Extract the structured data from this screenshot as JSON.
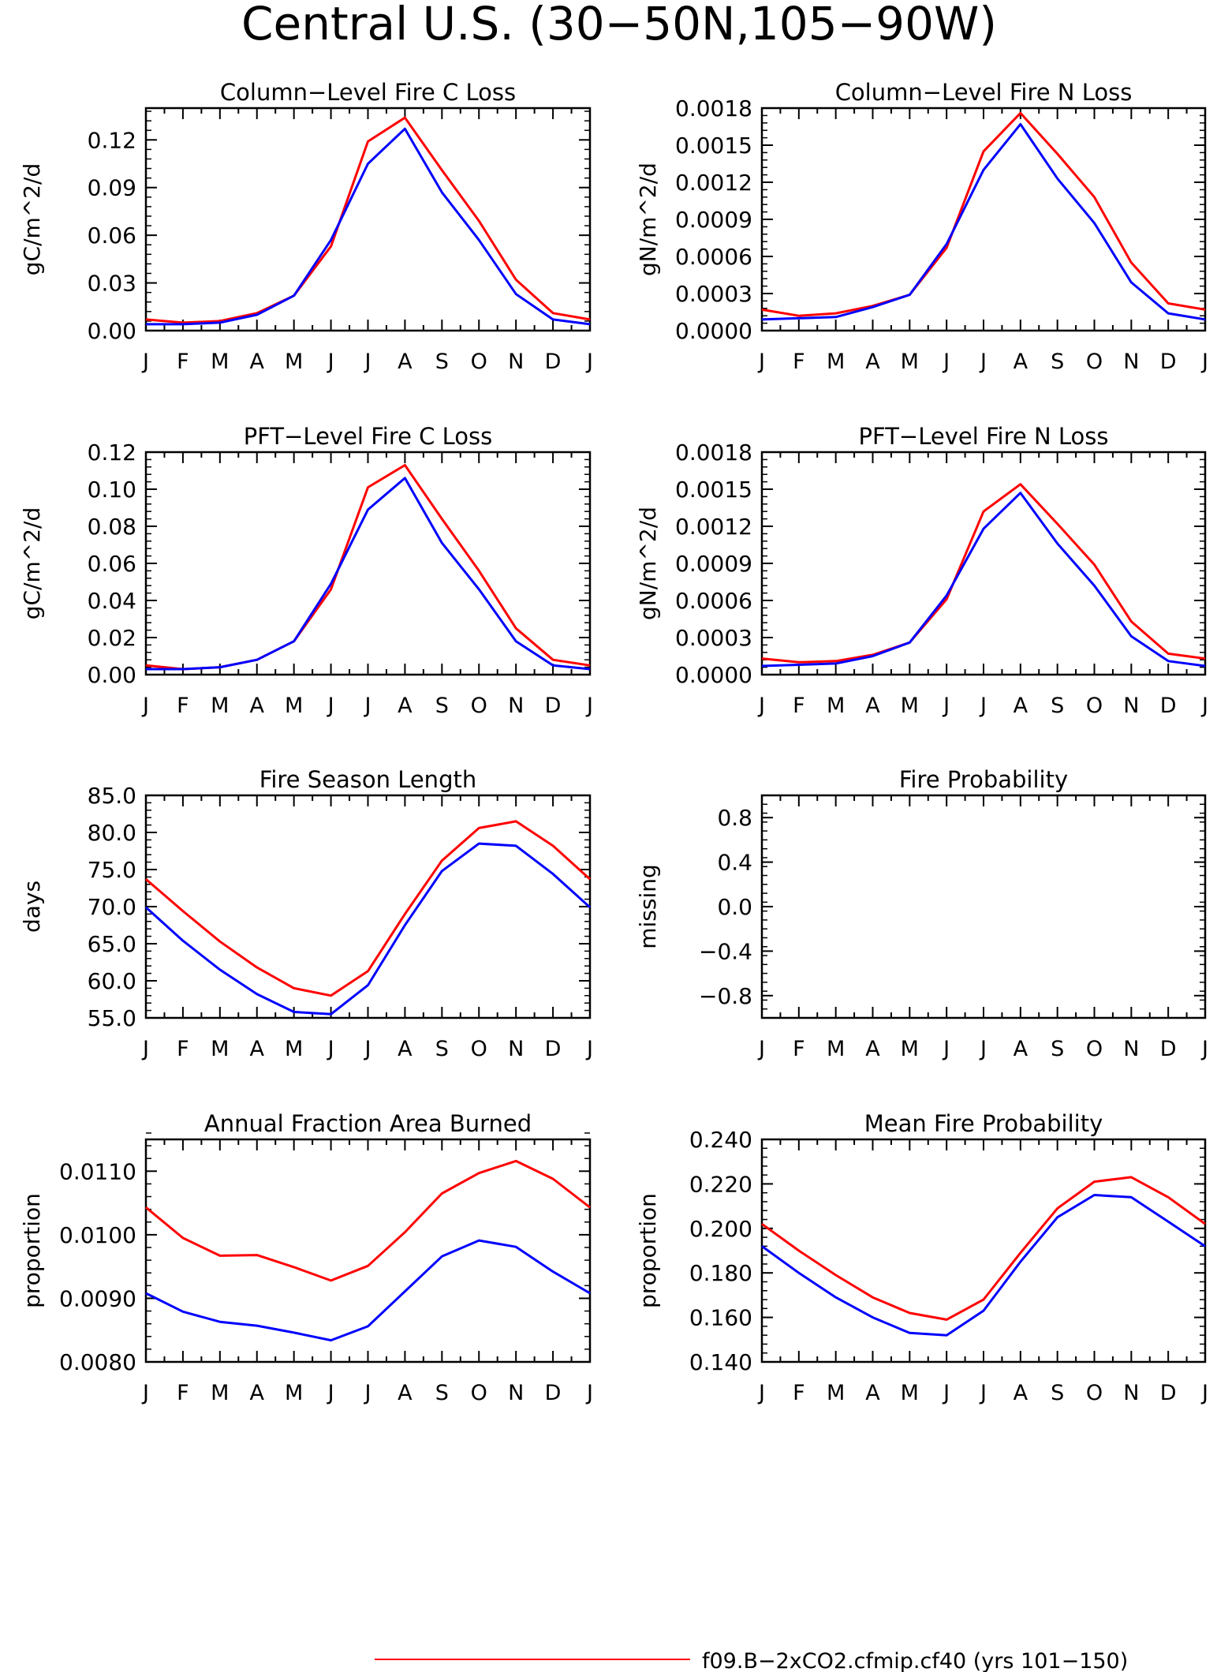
{
  "page": {
    "title": "Central U.S. (30−50N,105−90W)"
  },
  "months": [
    "J",
    "F",
    "M",
    "A",
    "M",
    "J",
    "J",
    "A",
    "S",
    "O",
    "N",
    "D",
    "J"
  ],
  "legend": {
    "entries": [
      {
        "label": "f09.B−2xCO2.cfmip.cf40 (yrs 101−150)",
        "color": "#ff0000"
      }
    ]
  },
  "colors": {
    "red": "#ff0000",
    "blue": "#0000ff"
  },
  "chart_data": [
    {
      "type": "line",
      "title": "Column−Level Fire C Loss",
      "ylabel": "gC/m^2/d",
      "ylim": [
        0,
        0.14
      ],
      "yticks": [
        "0.00",
        "0.03",
        "0.06",
        "0.09",
        "0.12"
      ],
      "ytick_values": [
        0,
        0.03,
        0.06,
        0.09,
        0.12
      ],
      "series": [
        {
          "color": "#ff0000",
          "values": [
            0.007,
            0.005,
            0.006,
            0.011,
            0.022,
            0.053,
            0.119,
            0.134,
            0.101,
            0.069,
            0.032,
            0.011,
            0.007
          ]
        },
        {
          "color": "#0000ff",
          "values": [
            0.004,
            0.004,
            0.005,
            0.01,
            0.022,
            0.057,
            0.105,
            0.127,
            0.087,
            0.057,
            0.023,
            0.007,
            0.004
          ]
        }
      ]
    },
    {
      "type": "line",
      "title": "Column−Level Fire N Loss",
      "ylabel": "gN/m^2/d",
      "ylim": [
        0,
        0.0018
      ],
      "yticks": [
        "0.0000",
        "0.0003",
        "0.0006",
        "0.0009",
        "0.0012",
        "0.0015",
        "0.0018"
      ],
      "ytick_values": [
        0,
        0.0003,
        0.0006,
        0.0009,
        0.0012,
        0.0015,
        0.0018
      ],
      "series": [
        {
          "color": "#ff0000",
          "values": [
            0.00017,
            0.00012,
            0.00014,
            0.0002,
            0.00029,
            0.00067,
            0.00145,
            0.00176,
            0.00143,
            0.00108,
            0.00055,
            0.00022,
            0.00017
          ]
        },
        {
          "color": "#0000ff",
          "values": [
            9e-05,
            0.0001,
            0.00011,
            0.00019,
            0.00029,
            0.0007,
            0.0013,
            0.00167,
            0.00123,
            0.00087,
            0.00039,
            0.00014,
            9e-05
          ]
        }
      ]
    },
    {
      "type": "line",
      "title": "PFT−Level Fire C Loss",
      "ylabel": "gC/m^2/d",
      "ylim": [
        0,
        0.12
      ],
      "yticks": [
        "0.00",
        "0.02",
        "0.04",
        "0.06",
        "0.08",
        "0.10",
        "0.12"
      ],
      "ytick_values": [
        0,
        0.02,
        0.04,
        0.06,
        0.08,
        0.1,
        0.12
      ],
      "series": [
        {
          "color": "#ff0000",
          "values": [
            0.005,
            0.003,
            0.004,
            0.008,
            0.018,
            0.046,
            0.101,
            0.113,
            0.084,
            0.056,
            0.025,
            0.008,
            0.005
          ]
        },
        {
          "color": "#0000ff",
          "values": [
            0.003,
            0.003,
            0.004,
            0.008,
            0.018,
            0.049,
            0.089,
            0.106,
            0.071,
            0.046,
            0.018,
            0.005,
            0.003
          ]
        }
      ]
    },
    {
      "type": "line",
      "title": "PFT−Level Fire N Loss",
      "ylabel": "gN/m^2/d",
      "ylim": [
        0,
        0.0018
      ],
      "yticks": [
        "0.0000",
        "0.0003",
        "0.0006",
        "0.0009",
        "0.0012",
        "0.0015",
        "0.0018"
      ],
      "ytick_values": [
        0,
        0.0003,
        0.0006,
        0.0009,
        0.0012,
        0.0015,
        0.0018
      ],
      "series": [
        {
          "color": "#ff0000",
          "values": [
            0.00013,
            0.0001,
            0.00011,
            0.00016,
            0.00026,
            0.00061,
            0.00132,
            0.00154,
            0.00122,
            0.00089,
            0.00043,
            0.00017,
            0.00013
          ]
        },
        {
          "color": "#0000ff",
          "values": [
            7e-05,
            8e-05,
            9e-05,
            0.00015,
            0.00026,
            0.00064,
            0.00118,
            0.00147,
            0.00106,
            0.00072,
            0.00031,
            0.00011,
            7e-05
          ]
        }
      ]
    },
    {
      "type": "line",
      "title": "Fire Season Length",
      "ylabel": "days",
      "ylim": [
        55,
        85
      ],
      "yticks": [
        "55.0",
        "60.0",
        "65.0",
        "70.0",
        "75.0",
        "80.0",
        "85.0"
      ],
      "ytick_values": [
        55,
        60,
        65,
        70,
        75,
        80,
        85
      ],
      "series": [
        {
          "color": "#ff0000",
          "values": [
            73.7,
            69.4,
            65.3,
            61.8,
            59.0,
            58.0,
            61.3,
            69.0,
            76.2,
            80.6,
            81.5,
            78.2,
            73.7
          ]
        },
        {
          "color": "#0000ff",
          "values": [
            69.9,
            65.4,
            61.5,
            58.2,
            55.8,
            55.5,
            59.4,
            67.5,
            74.8,
            78.5,
            78.2,
            74.4,
            69.9
          ]
        }
      ]
    },
    {
      "type": "line",
      "title": "Fire Probability",
      "ylabel": "missing",
      "ylim": [
        -1,
        1
      ],
      "yticks": [
        "−0.8",
        "−0.4",
        "0.0",
        "0.4",
        "0.8"
      ],
      "ytick_values": [
        -0.8,
        -0.4,
        0,
        0.4,
        0.8
      ],
      "series": []
    },
    {
      "type": "line",
      "title": "Annual Fraction Area Burned",
      "ylabel": "proportion",
      "ylim": [
        0.008,
        0.0115
      ],
      "yticks": [
        "0.0080",
        "0.0090",
        "0.0100",
        "0.0110"
      ],
      "ytick_values": [
        0.008,
        0.009,
        0.01,
        0.011
      ],
      "series": [
        {
          "color": "#ff0000",
          "values": [
            0.01043,
            0.00995,
            0.00967,
            0.00968,
            0.00949,
            0.00928,
            0.00951,
            0.01004,
            0.01065,
            0.01097,
            0.01116,
            0.01088,
            0.01043
          ]
        },
        {
          "color": "#0000ff",
          "values": [
            0.00908,
            0.00879,
            0.00863,
            0.00857,
            0.00846,
            0.00834,
            0.00856,
            0.00911,
            0.00966,
            0.00991,
            0.00981,
            0.00942,
            0.00908
          ]
        }
      ]
    },
    {
      "type": "line",
      "title": "Mean Fire Probability",
      "ylabel": "proportion",
      "ylim": [
        0.14,
        0.24
      ],
      "yticks": [
        "0.140",
        "0.160",
        "0.180",
        "0.200",
        "0.220",
        "0.240"
      ],
      "ytick_values": [
        0.14,
        0.16,
        0.18,
        0.2,
        0.22,
        0.24
      ],
      "series": [
        {
          "color": "#ff0000",
          "values": [
            0.202,
            0.19,
            0.179,
            0.169,
            0.162,
            0.159,
            0.168,
            0.189,
            0.209,
            0.221,
            0.223,
            0.214,
            0.202
          ]
        },
        {
          "color": "#0000ff",
          "values": [
            0.192,
            0.18,
            0.169,
            0.16,
            0.153,
            0.152,
            0.163,
            0.185,
            0.205,
            0.215,
            0.214,
            0.203,
            0.192
          ]
        }
      ]
    }
  ]
}
